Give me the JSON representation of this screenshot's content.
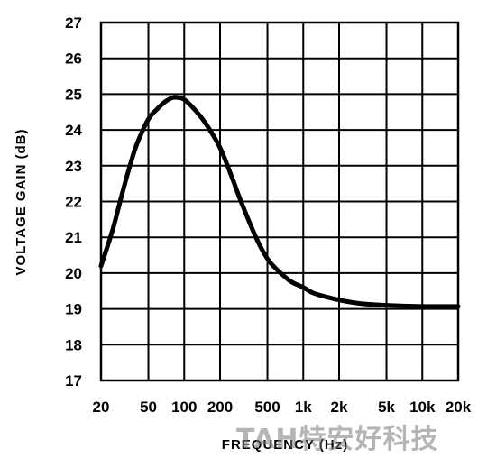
{
  "chart_data": {
    "type": "line",
    "xlabel": "FREQUENCY (Hz)",
    "ylabel": "VOLTAGE GAIN (dB)",
    "x_scale": "log",
    "xlim": [
      20,
      20000
    ],
    "ylim": [
      17,
      27
    ],
    "grid": true,
    "x_ticks": [
      20,
      50,
      100,
      200,
      500,
      1000,
      2000,
      5000,
      10000,
      20000
    ],
    "x_tick_labels": [
      "20",
      "50",
      "100",
      "200",
      "500",
      "1k",
      "2k",
      "5k",
      "10k",
      "20k"
    ],
    "y_ticks": [
      17,
      18,
      19,
      20,
      21,
      22,
      23,
      24,
      25,
      26,
      27
    ],
    "y_tick_labels": [
      "17",
      "18",
      "19",
      "20",
      "21",
      "22",
      "23",
      "24",
      "25",
      "26",
      "27"
    ],
    "series": [
      {
        "x": [
          20,
          25,
          30,
          35,
          40,
          50,
          60,
          70,
          80,
          90,
          100,
          120,
          150,
          200,
          250,
          300,
          400,
          500,
          600,
          700,
          800,
          1000,
          1200,
          1500,
          2000,
          3000,
          5000,
          10000,
          20000
        ],
        "y": [
          20.2,
          21.2,
          22.2,
          23.0,
          23.6,
          24.3,
          24.6,
          24.8,
          24.9,
          24.9,
          24.85,
          24.6,
          24.2,
          23.5,
          22.7,
          22.0,
          21.0,
          20.4,
          20.1,
          19.9,
          19.75,
          19.6,
          19.45,
          19.35,
          19.25,
          19.15,
          19.1,
          19.07,
          19.07
        ]
      }
    ]
  },
  "watermark": "TAH特安好科技"
}
